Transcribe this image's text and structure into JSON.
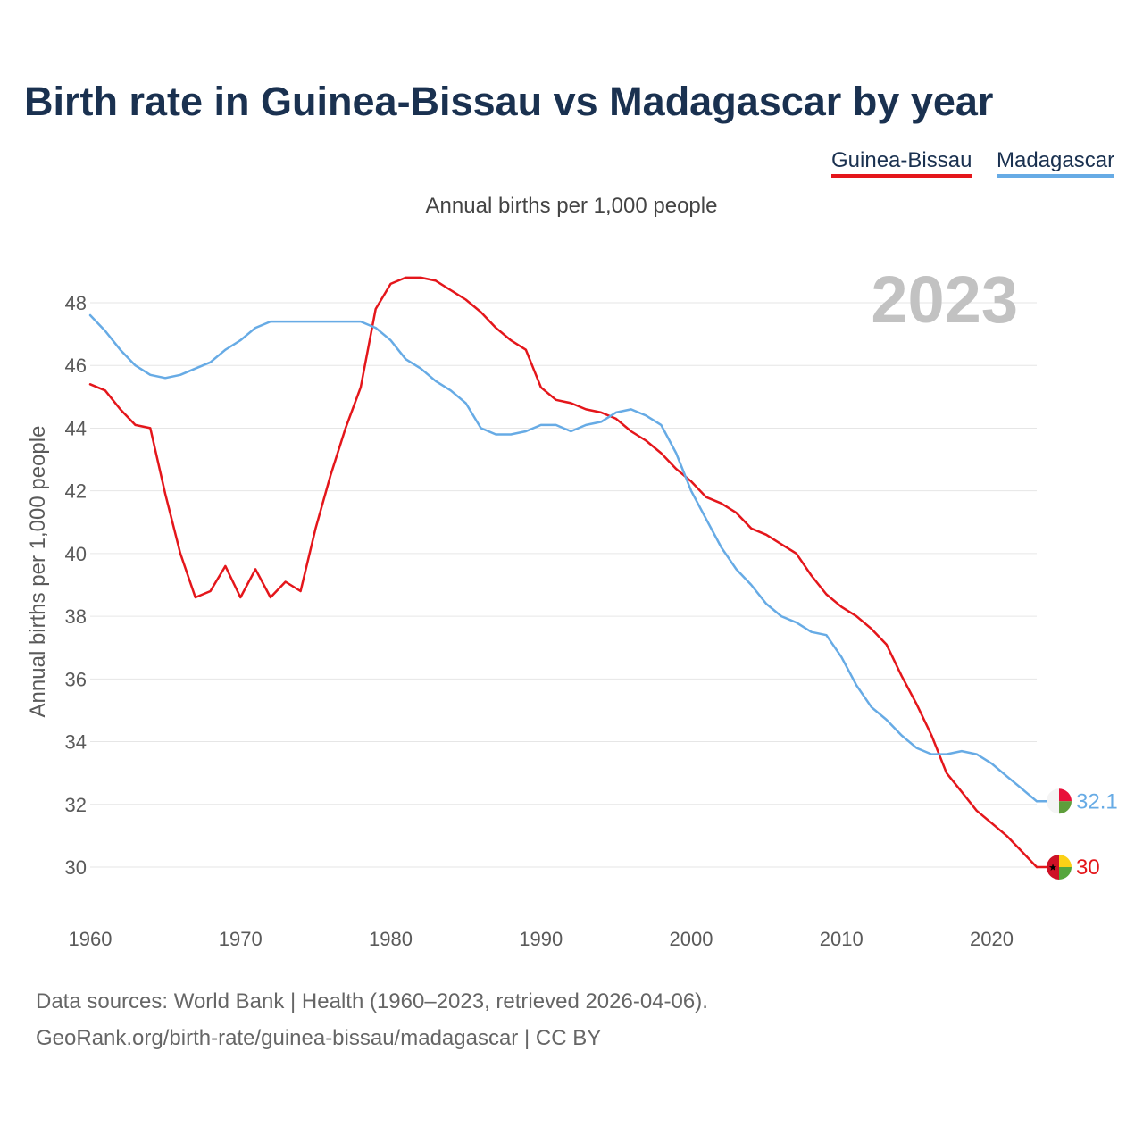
{
  "title": "Birth rate in Guinea-Bissau vs Madagascar by year",
  "subtitle": "Annual births per 1,000 people",
  "footer": {
    "line1": "Data sources: World Bank | Health (1960–2023, retrieved 2026-04-06).",
    "line2": "GeoRank.org/birth-rate/guinea-bissau/madagascar | CC BY"
  },
  "colors": {
    "guinea_bissau": "#e4161b",
    "madagascar": "#67abe5",
    "grid": "#e6e6e6"
  },
  "chart_data": {
    "type": "line",
    "title": "Birth rate in Guinea-Bissau vs Madagascar by year",
    "subtitle": "Annual births per 1,000 people",
    "ylabel": "Annual births per 1,000 people",
    "xlabel": "",
    "year_label": "2023",
    "xlim": [
      1960,
      2023
    ],
    "ylim": [
      29,
      49
    ],
    "xticks": [
      1960,
      1970,
      1980,
      1990,
      2000,
      2010,
      2020
    ],
    "yticks": [
      30,
      32,
      34,
      36,
      38,
      40,
      42,
      44,
      46,
      48
    ],
    "grid": true,
    "legend_position": "top-right",
    "x": [
      1960,
      1961,
      1962,
      1963,
      1964,
      1965,
      1966,
      1967,
      1968,
      1969,
      1970,
      1971,
      1972,
      1973,
      1974,
      1975,
      1976,
      1977,
      1978,
      1979,
      1980,
      1981,
      1982,
      1983,
      1984,
      1985,
      1986,
      1987,
      1988,
      1989,
      1990,
      1991,
      1992,
      1993,
      1994,
      1995,
      1996,
      1997,
      1998,
      1999,
      2000,
      2001,
      2002,
      2003,
      2004,
      2005,
      2006,
      2007,
      2008,
      2009,
      2010,
      2011,
      2012,
      2013,
      2014,
      2015,
      2016,
      2017,
      2018,
      2019,
      2020,
      2021,
      2022,
      2023
    ],
    "series": [
      {
        "name": "Guinea-Bissau",
        "color": "#e4161b",
        "end_label": "30",
        "values": [
          45.4,
          45.2,
          44.6,
          44.1,
          44.0,
          41.9,
          40.0,
          38.6,
          38.8,
          39.6,
          38.6,
          39.5,
          38.6,
          39.1,
          38.8,
          40.8,
          42.5,
          44.0,
          45.3,
          47.8,
          48.6,
          48.8,
          48.8,
          48.7,
          48.4,
          48.1,
          47.7,
          47.2,
          46.8,
          46.5,
          45.3,
          44.9,
          44.8,
          44.6,
          44.5,
          44.3,
          43.9,
          43.6,
          43.2,
          42.7,
          42.3,
          41.8,
          41.6,
          41.3,
          40.8,
          40.6,
          40.3,
          40.0,
          39.3,
          38.7,
          38.3,
          38.0,
          37.6,
          37.1,
          36.1,
          35.2,
          34.2,
          33.0,
          32.4,
          31.8,
          31.4,
          31.0,
          30.5,
          30.0
        ]
      },
      {
        "name": "Madagascar",
        "color": "#67abe5",
        "end_label": "32.1",
        "values": [
          47.6,
          47.1,
          46.5,
          46.0,
          45.7,
          45.6,
          45.7,
          45.9,
          46.1,
          46.5,
          46.8,
          47.2,
          47.4,
          47.4,
          47.4,
          47.4,
          47.4,
          47.4,
          47.4,
          47.2,
          46.8,
          46.2,
          45.9,
          45.5,
          45.2,
          44.8,
          44.0,
          43.8,
          43.8,
          43.9,
          44.1,
          44.1,
          43.9,
          44.1,
          44.2,
          44.5,
          44.6,
          44.4,
          44.1,
          43.2,
          42.0,
          41.1,
          40.2,
          39.5,
          39.0,
          38.4,
          38.0,
          37.8,
          37.5,
          37.4,
          36.7,
          35.8,
          35.1,
          34.7,
          34.2,
          33.8,
          33.6,
          33.6,
          33.7,
          33.6,
          33.3,
          32.9,
          32.5,
          32.1
        ]
      }
    ]
  }
}
